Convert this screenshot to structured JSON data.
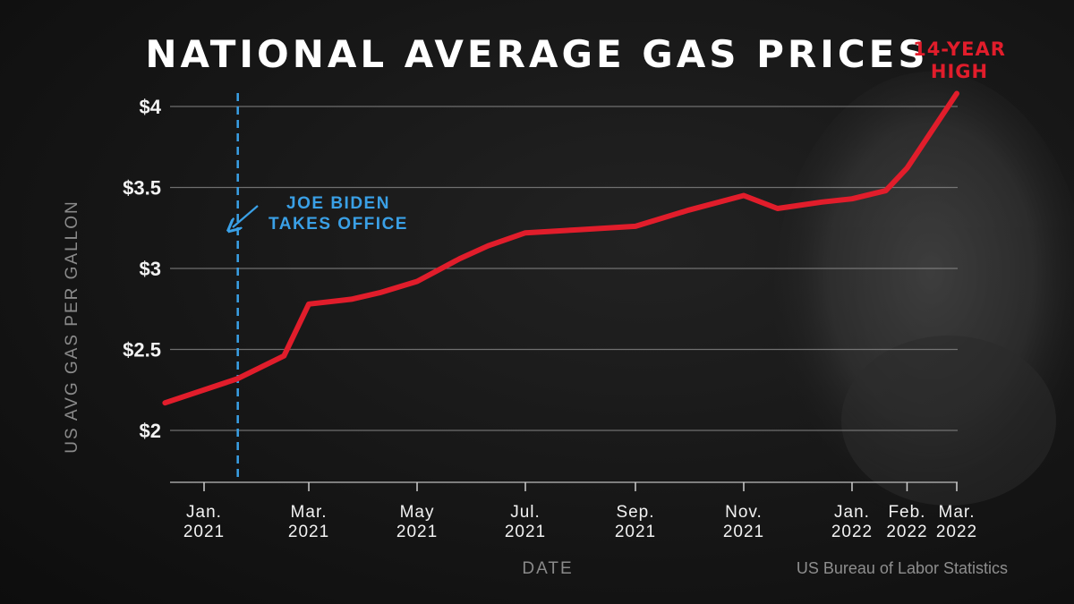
{
  "chart_data": {
    "type": "line",
    "title": "NATIONAL AVERAGE GAS PRICES",
    "xlabel": "DATE",
    "ylabel": "US AVG GAS PER GALLON",
    "source": "US Bureau of Labor Statistics",
    "ylim": [
      1.85,
      4.05
    ],
    "y_ticks": [
      {
        "value": 2,
        "label": "$2"
      },
      {
        "value": 2.5,
        "label": "$2.5"
      },
      {
        "value": 3,
        "label": "$3"
      },
      {
        "value": 3.5,
        "label": "$3.5"
      },
      {
        "value": 4,
        "label": "$4"
      }
    ],
    "x_ticks": [
      {
        "date": "2021-01-01",
        "line1": "Jan.",
        "line2": "2021"
      },
      {
        "date": "2021-03-01",
        "line1": "Mar.",
        "line2": "2021"
      },
      {
        "date": "2021-05-01",
        "line1": "May",
        "line2": "2021"
      },
      {
        "date": "2021-07-01",
        "line1": "Jul.",
        "line2": "2021"
      },
      {
        "date": "2021-09-01",
        "line1": "Sep.",
        "line2": "2021"
      },
      {
        "date": "2021-11-01",
        "line1": "Nov.",
        "line2": "2021"
      },
      {
        "date": "2022-01-01",
        "line1": "Jan.",
        "line2": "2022"
      },
      {
        "date": "2022-02-01",
        "line1": "Feb.",
        "line2": "2022"
      },
      {
        "date": "2022-03-01",
        "line1": "Mar.",
        "line2": "2022"
      }
    ],
    "grid": true,
    "series": [
      {
        "color": "#e11d2b",
        "points": [
          {
            "x": "2020-12-10",
            "y": 2.17
          },
          {
            "x": "2021-01-20",
            "y": 2.32
          },
          {
            "x": "2021-02-15",
            "y": 2.46
          },
          {
            "x": "2021-03-01",
            "y": 2.78
          },
          {
            "x": "2021-03-25",
            "y": 2.81
          },
          {
            "x": "2021-04-10",
            "y": 2.85
          },
          {
            "x": "2021-05-01",
            "y": 2.92
          },
          {
            "x": "2021-05-25",
            "y": 3.06
          },
          {
            "x": "2021-06-10",
            "y": 3.14
          },
          {
            "x": "2021-07-01",
            "y": 3.22
          },
          {
            "x": "2021-08-01",
            "y": 3.24
          },
          {
            "x": "2021-09-01",
            "y": 3.26
          },
          {
            "x": "2021-10-01",
            "y": 3.36
          },
          {
            "x": "2021-11-01",
            "y": 3.45
          },
          {
            "x": "2021-11-20",
            "y": 3.37
          },
          {
            "x": "2021-12-15",
            "y": 3.41
          },
          {
            "x": "2022-01-01",
            "y": 3.43
          },
          {
            "x": "2022-01-20",
            "y": 3.48
          },
          {
            "x": "2022-02-01",
            "y": 3.62
          },
          {
            "x": "2022-03-01",
            "y": 4.08
          }
        ]
      }
    ],
    "annotations": [
      {
        "id": "biden",
        "line1": "JOE BIDEN",
        "line2": "TAKES OFFICE",
        "x": "2021-01-20",
        "color": "#3aa0e6",
        "style": "dashed-vertical-line"
      },
      {
        "id": "high",
        "line1": "14-YEAR",
        "line2": "HIGH",
        "color": "#e11d2b"
      }
    ]
  }
}
